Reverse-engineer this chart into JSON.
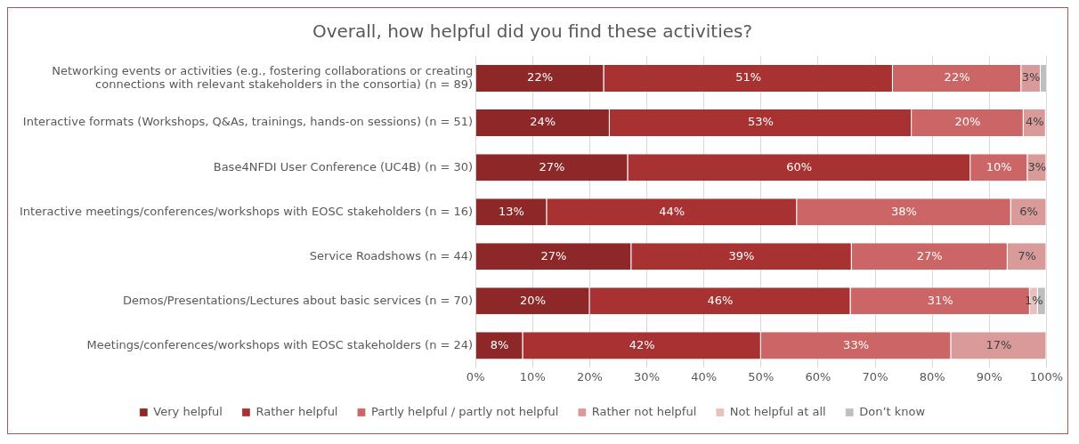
{
  "chart_data": {
    "type": "bar",
    "orientation": "horizontal",
    "stacked": true,
    "title": "Overall, how helpful did you find these activities?",
    "categories": [
      [
        "Networking events or activities (e.g., fostering collaborations or creating",
        "connections with relevant stakeholders in the consortia) (n = 89)"
      ],
      "Interactive formats (Workshops, Q&As, trainings, hands-on sessions) (n = 51)",
      "Base4NFDI User Conference (UC4B) (n = 30)",
      "Interactive meetings/conferences/workshops with EOSC stakeholders (n = 16)",
      "Service Roadshows (n = 44)",
      "Demos/Presentations/Lectures about basic services (n = 70)",
      "Meetings/conferences/workshops with EOSC stakeholders (n = 24)"
    ],
    "series": [
      {
        "name": "Very helpful",
        "color": "#8e2828",
        "values": [
          22.5,
          23.5,
          26.7,
          12.5,
          27.3,
          20.0,
          8.3
        ],
        "value_labels": [
          "22%",
          "24%",
          "27%",
          "13%",
          "27%",
          "20%",
          "8%"
        ]
      },
      {
        "name": "Rather helpful",
        "color": "#a83232",
        "values": [
          50.6,
          52.9,
          60.0,
          43.8,
          38.6,
          45.7,
          41.7
        ],
        "value_labels": [
          "51%",
          "53%",
          "60%",
          "44%",
          "39%",
          "46%",
          "42%"
        ]
      },
      {
        "name": "Partly helpful / partly not helpful",
        "color": "#cc6666",
        "values": [
          22.5,
          19.6,
          10.0,
          37.5,
          27.3,
          31.4,
          33.3
        ],
        "value_labels": [
          "22%",
          "20%",
          "10%",
          "38%",
          "27%",
          "31%",
          "33%"
        ]
      },
      {
        "name": "Rather not helpful",
        "color": "#d99a9a",
        "values": [
          3.4,
          3.9,
          3.3,
          6.2,
          6.8,
          0,
          16.7
        ],
        "value_labels": [
          "3%",
          "4%",
          "3%",
          "6%",
          "7%",
          null,
          "17%"
        ]
      },
      {
        "name": "Not helpful at all",
        "color": "#e8c0c0",
        "values": [
          0,
          0,
          0,
          0,
          0,
          1.4,
          0
        ],
        "value_labels": [
          null,
          null,
          null,
          null,
          null,
          "1%",
          null
        ]
      },
      {
        "name": "Don’t know",
        "color": "#bfbfbf",
        "values": [
          1.1,
          0,
          0,
          0,
          0,
          1.4,
          0
        ],
        "value_labels": [
          null,
          null,
          null,
          null,
          null,
          null,
          null
        ]
      }
    ],
    "xlim": [
      0,
      100
    ],
    "xticks": [
      {
        "value": 0,
        "label": "0%"
      },
      {
        "value": 10,
        "label": "10%"
      },
      {
        "value": 20,
        "label": "20%"
      },
      {
        "value": 30,
        "label": "30%"
      },
      {
        "value": 40,
        "label": "40%"
      },
      {
        "value": 50,
        "label": "50%"
      },
      {
        "value": 60,
        "label": "60%"
      },
      {
        "value": 70,
        "label": "70%"
      },
      {
        "value": 80,
        "label": "80%"
      },
      {
        "value": 90,
        "label": "90%"
      },
      {
        "value": 100,
        "label": "100%"
      }
    ],
    "grid": "x",
    "legend": "bottom"
  }
}
